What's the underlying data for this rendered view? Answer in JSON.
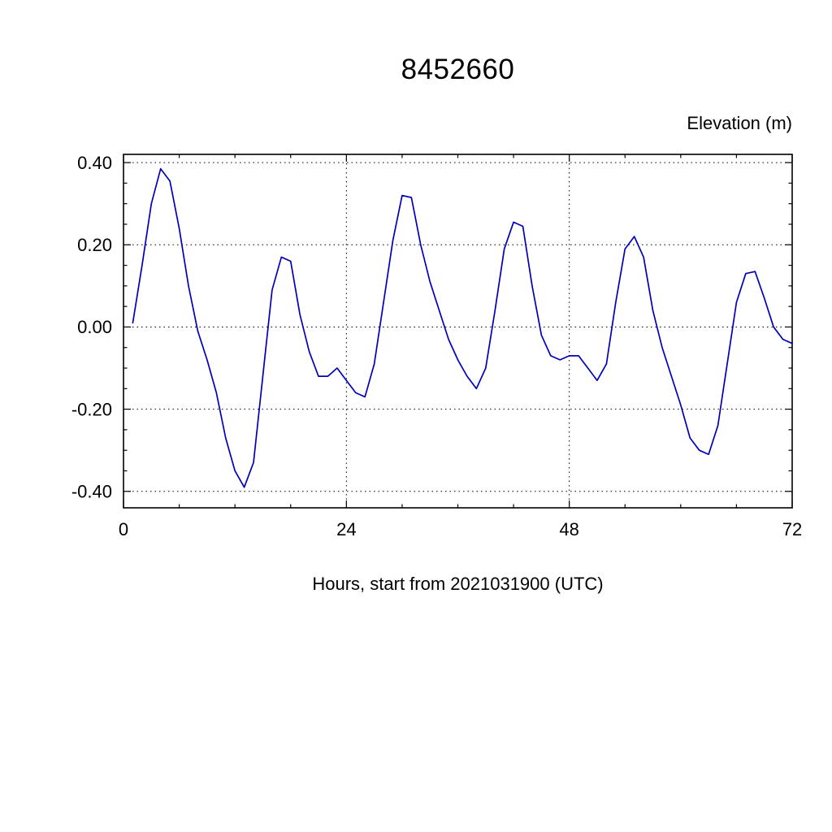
{
  "chart_data": {
    "type": "line",
    "title": "8452660",
    "ylabel": "Elevation (m)",
    "xlabel": "Hours, start from 2021031900 (UTC)",
    "xlim": [
      0,
      72
    ],
    "ylim": [
      -0.44,
      0.42
    ],
    "x_major_ticks": [
      0,
      24,
      48,
      72
    ],
    "x_tick_labels": [
      "0",
      "24",
      "48",
      "72"
    ],
    "x_minor_step": 6,
    "y_major_ticks": [
      -0.4,
      -0.2,
      0.0,
      0.2,
      0.4
    ],
    "y_tick_labels": [
      "-0.40",
      "-0.20",
      "0.00",
      "0.20",
      "0.40"
    ],
    "y_minor_step": 0.05,
    "grid": {
      "x": [
        24,
        48
      ],
      "y": [
        -0.4,
        -0.2,
        0.0,
        0.2,
        0.4
      ],
      "style": "dotted",
      "on": true
    },
    "legend": "none",
    "line_color": "#0000bb",
    "frame_color": "#000000",
    "x": [
      1,
      2,
      3,
      4,
      5,
      6,
      7,
      8,
      9,
      10,
      11,
      12,
      13,
      14,
      15,
      16,
      17,
      18,
      19,
      20,
      21,
      22,
      23,
      24,
      25,
      26,
      27,
      28,
      29,
      30,
      31,
      32,
      33,
      34,
      35,
      36,
      37,
      38,
      39,
      40,
      41,
      42,
      43,
      44,
      45,
      46,
      47,
      48,
      49,
      50,
      51,
      52,
      53,
      54,
      55,
      56,
      57,
      58,
      59,
      60,
      61,
      62,
      63,
      64,
      65,
      66,
      67,
      68,
      69,
      70,
      71,
      72
    ],
    "y": [
      0.01,
      0.15,
      0.3,
      0.385,
      0.355,
      0.24,
      0.1,
      -0.01,
      -0.08,
      -0.16,
      -0.27,
      -0.35,
      -0.39,
      -0.33,
      -0.12,
      0.09,
      0.17,
      0.16,
      0.03,
      -0.06,
      -0.12,
      -0.12,
      -0.1,
      -0.13,
      -0.16,
      -0.17,
      -0.09,
      0.06,
      0.21,
      0.32,
      0.315,
      0.2,
      0.11,
      0.04,
      -0.03,
      -0.08,
      -0.12,
      -0.15,
      -0.1,
      0.04,
      0.19,
      0.255,
      0.245,
      0.1,
      -0.02,
      -0.07,
      -0.08,
      -0.07,
      -0.07,
      -0.1,
      -0.13,
      -0.09,
      0.06,
      0.19,
      0.22,
      0.17,
      0.04,
      -0.05,
      -0.12,
      -0.19,
      -0.27,
      -0.3,
      -0.31,
      -0.24,
      -0.09,
      0.06,
      0.13,
      0.135,
      0.07,
      0.0,
      -0.03,
      -0.04
    ]
  }
}
